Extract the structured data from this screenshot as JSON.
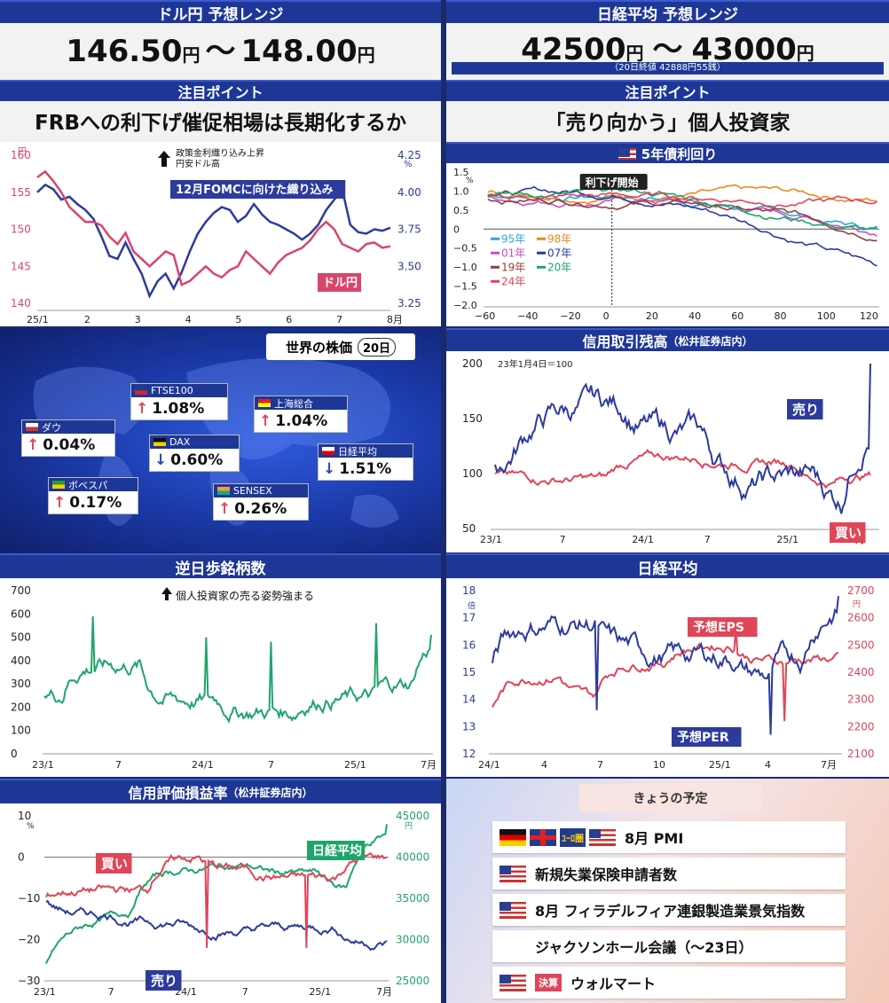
{
  "usdjpy": {
    "title": "ドル円 予想レンジ",
    "low": "146.50",
    "high": "148.00",
    "unit": "円",
    "sep": "～",
    "point_bar": "注目ポイント",
    "point": "FRBへの利下げ催促相場は長期化するか"
  },
  "nikkei": {
    "title": "日経平均 予想レンジ",
    "low": "42500",
    "high": "43000",
    "unit": "円",
    "sep": "～",
    "note": "（20日終値 42888円55銭）",
    "point_bar": "注目ポイント",
    "point": "「売り向かう」個人投資家"
  },
  "chart_data": [
    {
      "id": "usdjpy_chart",
      "type": "line",
      "annotation_top": "政策金利織り込み上昇",
      "annotation_top2": "円安ドル高",
      "xlabels": [
        "25/1",
        "2",
        "3",
        "4",
        "5",
        "6",
        "7",
        "8月"
      ],
      "left_axis": {
        "ticks": [
          "160",
          "155",
          "150",
          "145",
          "140"
        ],
        "unit": "円"
      },
      "right_axis": {
        "ticks": [
          "4.25",
          "4.00",
          "3.75",
          "3.50",
          "3.25"
        ],
        "unit": "%"
      },
      "series": [
        {
          "name": "ドル円",
          "color": "#d9466b",
          "values": [
            157,
            157.8,
            156.5,
            155,
            153,
            152,
            151,
            151,
            150.5,
            149,
            148,
            149.5,
            147,
            146,
            145,
            146,
            147,
            146.5,
            142.5,
            143,
            144,
            145,
            144,
            143.5,
            144.5,
            145,
            147,
            146,
            145,
            144,
            145.5,
            146.5,
            147,
            147.5,
            148.5,
            150,
            151,
            150,
            148,
            147.5,
            147,
            148,
            148.2,
            147.5,
            147.7
          ]
        },
        {
          "name": "12月FOMCに向けた織り込み",
          "color": "#2c3b9c",
          "values": [
            4.0,
            4.05,
            4.02,
            3.95,
            3.97,
            3.92,
            3.88,
            3.82,
            3.7,
            3.57,
            3.55,
            3.66,
            3.55,
            3.45,
            3.3,
            3.4,
            3.45,
            3.35,
            3.46,
            3.6,
            3.72,
            3.8,
            3.86,
            3.9,
            3.88,
            3.8,
            3.84,
            3.92,
            3.85,
            3.8,
            3.78,
            3.75,
            3.72,
            3.68,
            3.72,
            3.78,
            3.88,
            3.95,
            4.02,
            3.78,
            3.73,
            3.72,
            3.75,
            3.74,
            3.76
          ]
        }
      ]
    },
    {
      "id": "us5y_chart",
      "type": "line",
      "title": "5年債利回り",
      "annotation": "利下げ開始",
      "xticks": [
        "−60",
        "−40",
        "−20",
        "0",
        "20",
        "40",
        "60",
        "80",
        "100",
        "120"
      ],
      "yticks": [
        "1.5",
        "1.0",
        "0.5",
        "0",
        "−0.5",
        "−1.0",
        "−1.5",
        "−2.0"
      ],
      "yunit": "%",
      "series": [
        {
          "name": "95年",
          "color": "#29a7df"
        },
        {
          "name": "98年",
          "color": "#e88a1d"
        },
        {
          "name": "01年",
          "color": "#c44fc2"
        },
        {
          "name": "07年",
          "color": "#2c3b9c"
        },
        {
          "name": "19年",
          "color": "#9b3b3b"
        },
        {
          "name": "20年",
          "color": "#1fa56b"
        },
        {
          "name": "24年",
          "color": "#e04558"
        }
      ]
    },
    {
      "id": "margin_chart",
      "type": "line",
      "title": "信用取引残高",
      "title_sub": "（松井証券店内）",
      "note": "23年1月4日＝100",
      "xticks": [
        "23/1",
        "7",
        "24/1",
        "7",
        "25/1",
        "7月"
      ],
      "yticks": [
        "200",
        "150",
        "100",
        "50"
      ],
      "series": [
        {
          "name": "売り",
          "color": "#2c3b9c"
        },
        {
          "name": "買い",
          "color": "#e04558"
        }
      ]
    },
    {
      "id": "advdec_chart",
      "type": "line",
      "title": "逆日歩銘柄数",
      "annotation": "個人投資家の売る姿勢強まる",
      "xticks": [
        "23/1",
        "7",
        "24/1",
        "7",
        "25/1",
        "7月"
      ],
      "yticks": [
        "700",
        "600",
        "500",
        "400",
        "300",
        "200",
        "100",
        "0"
      ],
      "series": [
        {
          "name": "逆日歩銘柄数",
          "color": "#1fa56b"
        }
      ]
    },
    {
      "id": "nikkei_chart",
      "type": "line",
      "title": "日経平均",
      "xticks": [
        "24/1",
        "4",
        "7",
        "10",
        "25/1",
        "4",
        "7月"
      ],
      "left_axis": {
        "ticks": [
          "18",
          "17",
          "16",
          "15",
          "14",
          "13",
          "12"
        ],
        "unit": "倍"
      },
      "right_axis": {
        "ticks": [
          "2700",
          "2600",
          "2500",
          "2400",
          "2300",
          "2200",
          "2100"
        ],
        "unit": "円"
      },
      "series": [
        {
          "name": "予想PER",
          "color": "#2c3b9c"
        },
        {
          "name": "予想EPS",
          "color": "#e04558"
        }
      ]
    },
    {
      "id": "valuation_chart",
      "type": "line",
      "title": "信用評価損益率",
      "title_sub": "（松井証券店内）",
      "xticks": [
        "23/1",
        "7",
        "24/1",
        "7",
        "25/1",
        "7月"
      ],
      "left_axis": {
        "ticks": [
          "10",
          "0",
          "−10",
          "−20",
          "−30"
        ],
        "unit": "%"
      },
      "right_axis": {
        "ticks": [
          "45000",
          "40000",
          "35000",
          "30000",
          "25000"
        ],
        "unit": "円"
      },
      "series": [
        {
          "name": "買い",
          "color": "#e04558"
        },
        {
          "name": "売り",
          "color": "#2c3b9c"
        },
        {
          "name": "日経平均",
          "color": "#1fa56b"
        }
      ]
    }
  ],
  "world": {
    "title": "世界の株価",
    "date": "20日",
    "items": [
      {
        "name": "FTSE100",
        "value": "1.08%",
        "dir": "up"
      },
      {
        "name": "上海総合",
        "value": "1.04%",
        "dir": "up"
      },
      {
        "name": "ダウ",
        "value": "0.04%",
        "dir": "up"
      },
      {
        "name": "DAX",
        "value": "0.60%",
        "dir": "down"
      },
      {
        "name": "日経平均",
        "value": "1.51%",
        "dir": "down"
      },
      {
        "name": "ボベスパ",
        "value": "0.17%",
        "dir": "up"
      },
      {
        "name": "SENSEX",
        "value": "0.26%",
        "dir": "up"
      }
    ]
  },
  "schedule": {
    "title": "きょうの予定",
    "eu_label": "ﾕｰﾛ圏",
    "settle": "決算",
    "items": [
      "8月 PMI",
      "新規失業保険申請者数",
      "8月 フィラデルフィア連銀製造業景気指数",
      "ジャクソンホール会議（～23日）",
      "ウォルマート"
    ]
  }
}
